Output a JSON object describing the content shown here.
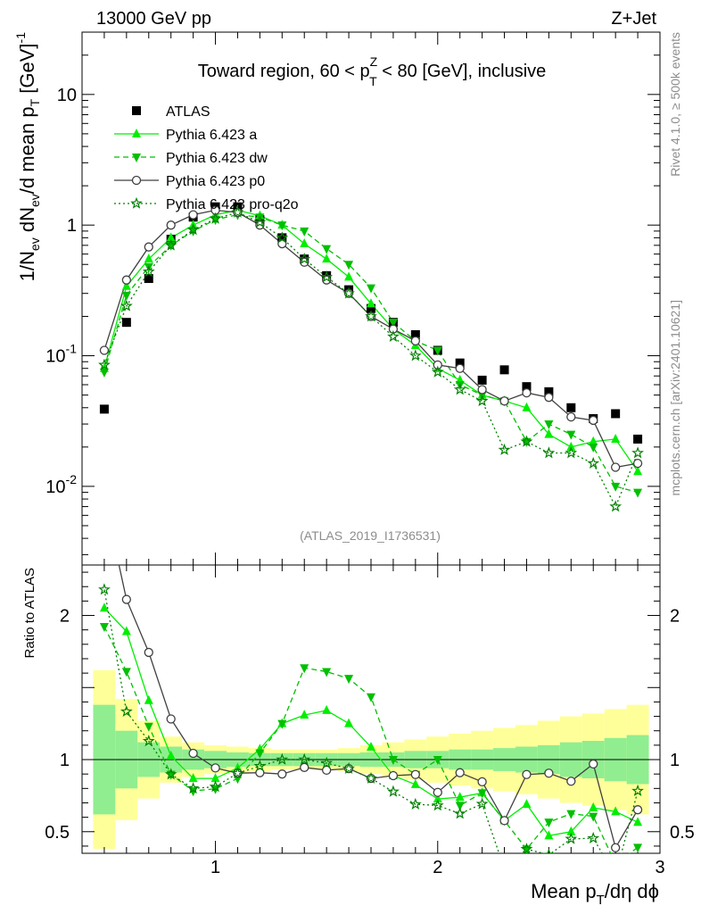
{
  "header": {
    "left": "13000 GeV pp",
    "right": "Z+Jet"
  },
  "side_labels": {
    "rivet": "Rivet 4.1.0, ≥ 500k events",
    "mcplots": "mcplots.cern.ch [arXiv:2401.10621]"
  },
  "chart_data": {
    "type": "line",
    "title": "Toward region, 60 < p_T^Z < 80 [GeV], inclusive",
    "title_parts": {
      "pre": "Toward region, 60 < p",
      "sup": "Z",
      "sub": "T",
      "post": " < 80 [GeV], inclusive"
    },
    "analysis_id": "(ATLAS_2019_I1736531)",
    "xlabel": "Mean p_T/dη dϕ",
    "xlabel_parts": {
      "a": "Mean p",
      "sub": "T",
      "b": "/dη dϕ"
    },
    "ylabel": "1/N_ev dN_ev/d mean p_T [GeV]^-1",
    "ylabel_parts": {
      "a": "1/N",
      "s1": "ev",
      "b": " dN",
      "s2": "ev",
      "c": "/d mean p",
      "s3": "T",
      "d": " [GeV]",
      "sup": "-1"
    },
    "ratio_ylabel": "Ratio to ATLAS",
    "xlim": [
      0.4,
      3.0
    ],
    "ylim": [
      0.0025,
      30
    ],
    "ratio_ylim": [
      0.35,
      2.35
    ],
    "x_ticks": [
      "1",
      "2",
      "3"
    ],
    "y_ticks": [
      {
        "base": "10",
        "exp": "-2"
      },
      {
        "base": "10",
        "exp": "-1"
      },
      {
        "base": "1",
        "exp": ""
      },
      {
        "base": "10",
        "exp": ""
      }
    ],
    "ratio_ticks": [
      "0.5",
      "1",
      "2"
    ],
    "x": [
      0.5,
      0.6,
      0.7,
      0.8,
      0.9,
      1.0,
      1.1,
      1.2,
      1.3,
      1.4,
      1.5,
      1.6,
      1.7,
      1.8,
      1.9,
      2.0,
      2.1,
      2.2,
      2.3,
      2.4,
      2.5,
      2.6,
      2.7,
      2.8,
      2.9
    ],
    "band_edges": [
      0.45,
      0.55,
      0.65,
      0.75,
      0.85,
      0.95,
      1.05,
      1.15,
      1.25,
      1.35,
      1.45,
      1.55,
      1.65,
      1.75,
      1.85,
      1.95,
      2.05,
      2.15,
      2.25,
      2.35,
      2.45,
      2.55,
      2.65,
      2.75,
      2.85,
      2.95
    ],
    "band_stat": [
      0.38,
      0.2,
      0.12,
      0.09,
      0.07,
      0.06,
      0.05,
      0.045,
      0.045,
      0.045,
      0.045,
      0.045,
      0.05,
      0.05,
      0.06,
      0.06,
      0.07,
      0.07,
      0.08,
      0.09,
      0.1,
      0.12,
      0.13,
      0.15,
      0.17
    ],
    "band_total": [
      0.62,
      0.42,
      0.27,
      0.16,
      0.12,
      0.1,
      0.09,
      0.08,
      0.07,
      0.07,
      0.07,
      0.08,
      0.1,
      0.12,
      0.14,
      0.16,
      0.18,
      0.2,
      0.22,
      0.24,
      0.27,
      0.3,
      0.32,
      0.35,
      0.38
    ],
    "band_colors": {
      "stat": "#90ee90",
      "total": "#ffff99"
    },
    "series": [
      {
        "name": "ATLAS",
        "style": "data",
        "marker": "square",
        "color": "#000000",
        "values": [
          0.039,
          0.18,
          0.39,
          0.78,
          1.15,
          1.38,
          1.38,
          1.1,
          0.8,
          0.55,
          0.41,
          0.32,
          0.23,
          0.18,
          0.145,
          0.11,
          0.088,
          0.065,
          0.078,
          0.058,
          0.053,
          0.04,
          0.033,
          0.036,
          0.023
        ]
      },
      {
        "name": "Pythia 6.423 a",
        "style": "solid",
        "marker": "triangle-up",
        "color": "#00ee00",
        "values": [
          0.08,
          0.34,
          0.55,
          0.8,
          1.0,
          1.2,
          1.3,
          1.18,
          1.0,
          0.72,
          0.55,
          0.4,
          0.25,
          0.16,
          0.12,
          0.08,
          0.065,
          0.05,
          0.045,
          0.04,
          0.025,
          0.02,
          0.022,
          0.023,
          0.013
        ]
      },
      {
        "name": "Pythia 6.423 dw",
        "style": "dashed",
        "marker": "triangle-down",
        "color": "#00c000",
        "values": [
          0.075,
          0.29,
          0.48,
          0.7,
          0.9,
          1.1,
          1.2,
          1.15,
          1.0,
          0.9,
          0.66,
          0.5,
          0.33,
          0.18,
          0.13,
          0.11,
          0.06,
          0.05,
          0.045,
          0.022,
          0.03,
          0.025,
          0.02,
          0.01,
          0.009
        ]
      },
      {
        "name": "Pythia 6.423 p0",
        "style": "solid",
        "marker": "circle-open",
        "color": "#404040",
        "values": [
          0.11,
          0.38,
          0.68,
          1.0,
          1.2,
          1.3,
          1.25,
          1.0,
          0.72,
          0.52,
          0.38,
          0.3,
          0.2,
          0.16,
          0.13,
          0.085,
          0.08,
          0.055,
          0.045,
          0.052,
          0.048,
          0.034,
          0.032,
          0.014,
          0.015
        ]
      },
      {
        "name": "Pythia 6.423 pro-q2o",
        "style": "dotted",
        "marker": "star-open",
        "color": "#008000",
        "values": [
          0.085,
          0.24,
          0.44,
          0.7,
          0.92,
          1.12,
          1.25,
          1.05,
          0.8,
          0.55,
          0.4,
          0.3,
          0.2,
          0.14,
          0.1,
          0.075,
          0.055,
          0.045,
          0.019,
          0.022,
          0.018,
          0.018,
          0.015,
          0.007,
          0.018
        ]
      }
    ]
  }
}
